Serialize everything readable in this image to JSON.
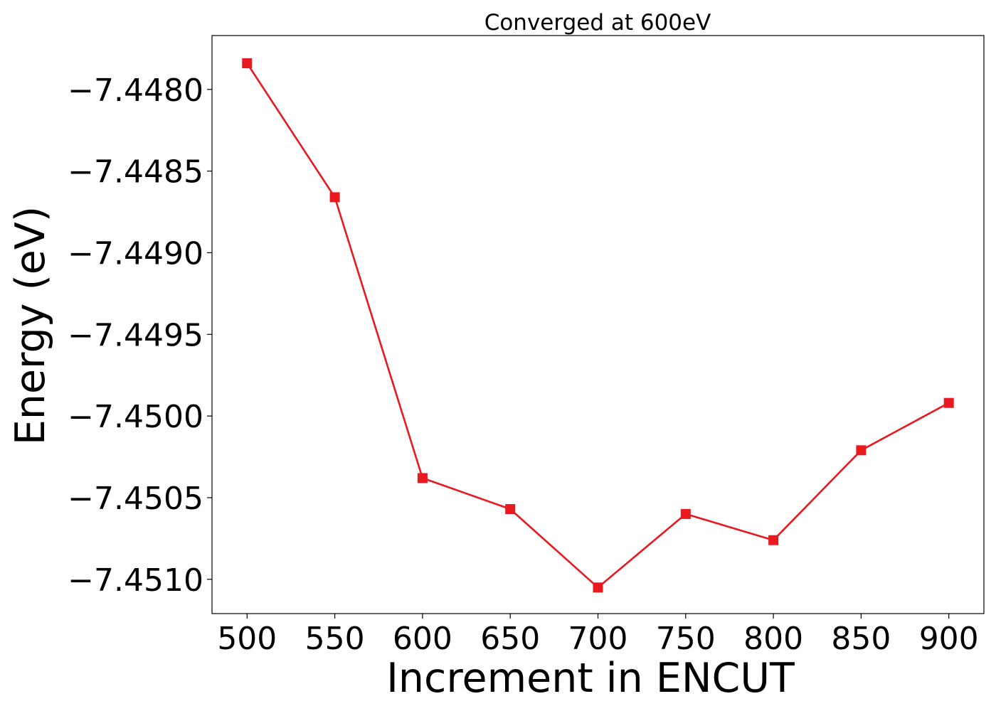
{
  "chart_data": {
    "type": "line",
    "title": "Converged at 600eV",
    "xlabel": "Increment in ENCUT",
    "ylabel": "Energy (eV)",
    "x": [
      500,
      550,
      600,
      650,
      700,
      750,
      800,
      850,
      900
    ],
    "xticks": [
      500,
      550,
      600,
      650,
      700,
      750,
      800,
      850,
      900
    ],
    "xtick_labels": [
      "500",
      "550",
      "600",
      "650",
      "700",
      "750",
      "800",
      "850",
      "900"
    ],
    "yticks": [
      -7.448,
      -7.4485,
      -7.449,
      -7.4495,
      -7.45,
      -7.4505,
      -7.451
    ],
    "ytick_labels": [
      "−7.4480",
      "−7.4485",
      "−7.4490",
      "−7.4495",
      "−7.4500",
      "−7.4505",
      "−7.4510"
    ],
    "series": [
      {
        "values": [
          -7.44784,
          -7.44866,
          -7.45038,
          -7.45057,
          -7.45105,
          -7.4506,
          -7.45076,
          -7.45021,
          -7.44992
        ],
        "color": "#e8191f",
        "marker": "square"
      }
    ],
    "xlim": [
      480,
      920
    ],
    "ylim": [
      -7.45121,
      -7.44767
    ],
    "grid": false,
    "legend": "none"
  }
}
